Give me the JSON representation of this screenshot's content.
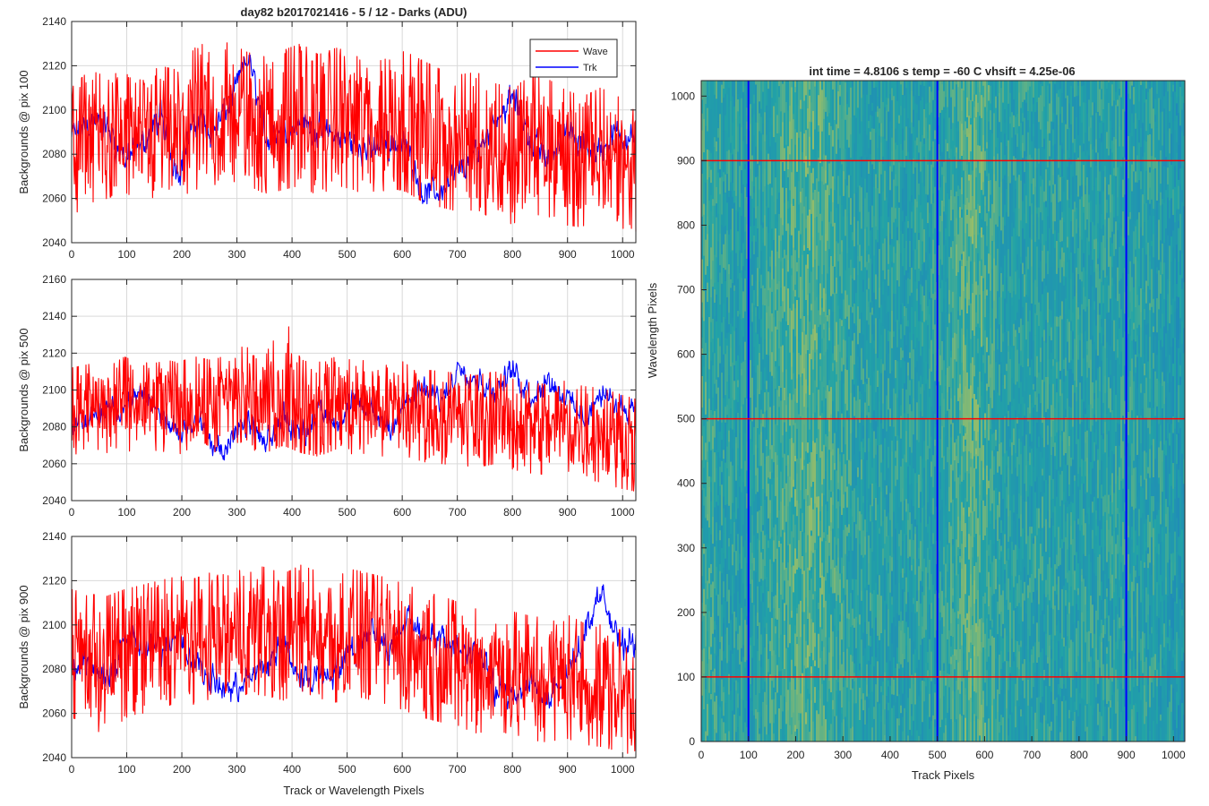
{
  "figure": {
    "left_title": "day82 b2017021416 - 5 / 12 - Darks (ADU)",
    "right_title": "int time = 4.8106 s    temp = -60 C    vhsift = 4.25e-06"
  },
  "colors": {
    "wave": "#ff0000",
    "trk": "#0000ff",
    "grid": "#d9d9d9",
    "axis": "#262626",
    "map_low": "#1e7fc0",
    "map_mid": "#22a3a6",
    "map_high": "#c8c850"
  },
  "chart_data": [
    {
      "type": "line",
      "title": "day82 b2017021416 - 5 / 12 - Darks (ADU)",
      "xlabel": "",
      "ylabel": "Backgrounds @ pix 100",
      "xlim": [
        0,
        1024
      ],
      "ylim": [
        2040,
        2140
      ],
      "xticks": [
        0,
        100,
        200,
        300,
        400,
        500,
        600,
        700,
        800,
        900,
        1000
      ],
      "yticks": [
        2040,
        2060,
        2080,
        2100,
        2120,
        2140
      ],
      "grid": true,
      "legend": "top-right",
      "x": [
        0,
        32,
        64,
        96,
        128,
        160,
        192,
        224,
        256,
        288,
        320,
        352,
        384,
        416,
        448,
        480,
        512,
        544,
        576,
        608,
        640,
        672,
        704,
        736,
        768,
        800,
        832,
        864,
        896,
        928,
        960,
        992,
        1024
      ],
      "series": [
        {
          "name": "Wave",
          "color": "#ff0000",
          "values": [
            2082,
            2092,
            2085,
            2088,
            2084,
            2091,
            2087,
            2095,
            2093,
            2098,
            2096,
            2092,
            2094,
            2098,
            2093,
            2097,
            2095,
            2092,
            2096,
            2094,
            2090,
            2087,
            2085,
            2087,
            2082,
            2080,
            2085,
            2084,
            2079,
            2077,
            2081,
            2078,
            2074
          ],
          "min": [
            2052,
            2058,
            2060,
            2063,
            2058,
            2062,
            2060,
            2064,
            2066,
            2068,
            2066,
            2062,
            2064,
            2066,
            2061,
            2066,
            2064,
            2060,
            2065,
            2063,
            2058,
            2056,
            2054,
            2055,
            2050,
            2048,
            2053,
            2052,
            2048,
            2047,
            2050,
            2047,
            2045
          ],
          "max": [
            2110,
            2118,
            2115,
            2118,
            2113,
            2120,
            2118,
            2128,
            2132,
            2130,
            2126,
            2124,
            2127,
            2130,
            2125,
            2128,
            2126,
            2124,
            2128,
            2126,
            2122,
            2118,
            2116,
            2117,
            2112,
            2110,
            2115,
            2114,
            2109,
            2106,
            2110,
            2106,
            2100
          ]
        },
        {
          "name": "Trk",
          "color": "#0000ff",
          "values": [
            2088,
            2095,
            2092,
            2078,
            2085,
            2097,
            2072,
            2096,
            2090,
            2104,
            2124,
            2088,
            2092,
            2094,
            2090,
            2088,
            2085,
            2082,
            2086,
            2083,
            2062,
            2064,
            2073,
            2082,
            2096,
            2106,
            2086,
            2078,
            2090,
            2082,
            2082,
            2090,
            2087
          ],
          "min": [
            2076,
            2082,
            2080,
            2064,
            2072,
            2084,
            2058,
            2082,
            2078,
            2092,
            2110,
            2074,
            2080,
            2082,
            2076,
            2076,
            2072,
            2068,
            2073,
            2070,
            2050,
            2052,
            2060,
            2069,
            2083,
            2093,
            2073,
            2065,
            2077,
            2069,
            2069,
            2077,
            2074
          ],
          "max": [
            2102,
            2108,
            2106,
            2092,
            2098,
            2110,
            2086,
            2110,
            2103,
            2117,
            2132,
            2102,
            2105,
            2107,
            2103,
            2101,
            2098,
            2096,
            2099,
            2096,
            2076,
            2078,
            2086,
            2095,
            2110,
            2119,
            2100,
            2092,
            2103,
            2096,
            2096,
            2103,
            2100
          ]
        }
      ]
    },
    {
      "type": "line",
      "xlabel": "",
      "ylabel": "Backgrounds @ pix 500",
      "xlim": [
        0,
        1024
      ],
      "ylim": [
        2040,
        2160
      ],
      "xticks": [
        0,
        100,
        200,
        300,
        400,
        500,
        600,
        700,
        800,
        900,
        1000
      ],
      "yticks": [
        2040,
        2060,
        2080,
        2100,
        2120,
        2140,
        2160
      ],
      "grid": true,
      "x": [
        0,
        32,
        64,
        96,
        128,
        160,
        192,
        224,
        256,
        288,
        320,
        352,
        384,
        416,
        448,
        480,
        512,
        544,
        576,
        608,
        640,
        672,
        704,
        736,
        768,
        800,
        832,
        864,
        896,
        928,
        960,
        992,
        1024
      ],
      "series": [
        {
          "name": "Wave",
          "color": "#ff0000",
          "values": [
            2090,
            2092,
            2088,
            2094,
            2090,
            2093,
            2091,
            2094,
            2092,
            2096,
            2094,
            2092,
            2096,
            2093,
            2090,
            2094,
            2091,
            2092,
            2089,
            2090,
            2087,
            2086,
            2085,
            2084,
            2086,
            2083,
            2081,
            2080,
            2082,
            2079,
            2078,
            2075,
            2072
          ],
          "min": [
            2065,
            2066,
            2062,
            2068,
            2064,
            2066,
            2065,
            2068,
            2066,
            2070,
            2068,
            2066,
            2070,
            2066,
            2064,
            2068,
            2065,
            2066,
            2063,
            2064,
            2061,
            2060,
            2059,
            2058,
            2060,
            2057,
            2055,
            2054,
            2056,
            2052,
            2050,
            2047,
            2045
          ],
          "max": [
            2112,
            2114,
            2112,
            2118,
            2114,
            2117,
            2115,
            2118,
            2116,
            2120,
            2125,
            2118,
            2145,
            2118,
            2115,
            2118,
            2116,
            2116,
            2113,
            2116,
            2111,
            2110,
            2109,
            2108,
            2110,
            2106,
            2104,
            2103,
            2105,
            2102,
            2101,
            2098,
            2095
          ]
        },
        {
          "name": "Trk",
          "color": "#0000ff",
          "values": [
            2080,
            2086,
            2088,
            2092,
            2098,
            2088,
            2078,
            2086,
            2068,
            2072,
            2082,
            2068,
            2086,
            2076,
            2090,
            2082,
            2094,
            2088,
            2081,
            2094,
            2100,
            2094,
            2114,
            2106,
            2099,
            2111,
            2097,
            2106,
            2096,
            2084,
            2098,
            2090,
            2092
          ],
          "min": [
            2067,
            2073,
            2075,
            2079,
            2085,
            2075,
            2065,
            2073,
            2055,
            2058,
            2068,
            2052,
            2073,
            2062,
            2077,
            2069,
            2081,
            2075,
            2068,
            2081,
            2087,
            2081,
            2100,
            2093,
            2086,
            2098,
            2084,
            2093,
            2083,
            2071,
            2085,
            2077,
            2079
          ],
          "max": [
            2093,
            2099,
            2101,
            2105,
            2110,
            2101,
            2091,
            2099,
            2081,
            2085,
            2095,
            2081,
            2099,
            2089,
            2103,
            2095,
            2107,
            2101,
            2094,
            2107,
            2113,
            2107,
            2125,
            2119,
            2112,
            2124,
            2110,
            2119,
            2109,
            2097,
            2111,
            2103,
            2105
          ]
        }
      ]
    },
    {
      "type": "line",
      "xlabel": "Track or Wavelength Pixels",
      "ylabel": "Backgrounds @ pix 900",
      "xlim": [
        0,
        1024
      ],
      "ylim": [
        2040,
        2140
      ],
      "xticks": [
        0,
        100,
        200,
        300,
        400,
        500,
        600,
        700,
        800,
        900,
        1000
      ],
      "yticks": [
        2040,
        2060,
        2080,
        2100,
        2120,
        2140
      ],
      "grid": true,
      "x": [
        0,
        32,
        64,
        96,
        128,
        160,
        192,
        224,
        256,
        288,
        320,
        352,
        384,
        416,
        448,
        480,
        512,
        544,
        576,
        608,
        640,
        672,
        704,
        736,
        768,
        800,
        832,
        864,
        896,
        928,
        960,
        992,
        1024
      ],
      "series": [
        {
          "name": "Wave",
          "color": "#ff0000",
          "values": [
            2088,
            2086,
            2085,
            2088,
            2090,
            2092,
            2094,
            2093,
            2096,
            2094,
            2098,
            2097,
            2095,
            2099,
            2096,
            2094,
            2097,
            2095,
            2093,
            2090,
            2087,
            2085,
            2082,
            2079,
            2081,
            2078,
            2076,
            2075,
            2077,
            2073,
            2072,
            2070,
            2068
          ],
          "min": [
            2058,
            2056,
            2048,
            2058,
            2060,
            2062,
            2065,
            2064,
            2067,
            2065,
            2069,
            2068,
            2066,
            2070,
            2067,
            2065,
            2068,
            2066,
            2064,
            2061,
            2058,
            2056,
            2054,
            2051,
            2053,
            2050,
            2048,
            2047,
            2049,
            2046,
            2045,
            2043,
            2041
          ],
          "max": [
            2116,
            2114,
            2113,
            2116,
            2118,
            2120,
            2122,
            2121,
            2124,
            2122,
            2127,
            2126,
            2123,
            2127,
            2124,
            2122,
            2125,
            2123,
            2121,
            2118,
            2115,
            2113,
            2110,
            2107,
            2109,
            2106,
            2104,
            2103,
            2105,
            2101,
            2100,
            2098,
            2096
          ]
        },
        {
          "name": "Trk",
          "color": "#0000ff",
          "values": [
            2078,
            2084,
            2072,
            2096,
            2088,
            2090,
            2098,
            2082,
            2074,
            2070,
            2076,
            2082,
            2092,
            2074,
            2078,
            2080,
            2090,
            2100,
            2088,
            2104,
            2096,
            2092,
            2090,
            2088,
            2070,
            2068,
            2076,
            2064,
            2076,
            2096,
            2116,
            2090,
            2094
          ],
          "min": [
            2065,
            2071,
            2059,
            2083,
            2075,
            2077,
            2085,
            2069,
            2061,
            2057,
            2063,
            2069,
            2079,
            2061,
            2065,
            2067,
            2077,
            2087,
            2075,
            2091,
            2083,
            2079,
            2077,
            2075,
            2057,
            2055,
            2063,
            2046,
            2063,
            2083,
            2103,
            2077,
            2081
          ],
          "max": [
            2091,
            2097,
            2085,
            2109,
            2101,
            2103,
            2111,
            2095,
            2087,
            2083,
            2089,
            2095,
            2105,
            2087,
            2091,
            2093,
            2103,
            2113,
            2101,
            2117,
            2109,
            2105,
            2103,
            2101,
            2083,
            2081,
            2089,
            2077,
            2089,
            2109,
            2121,
            2103,
            2107
          ]
        }
      ]
    },
    {
      "type": "heatmap",
      "title": "int time = 4.8106 s    temp = -60 C    vhsift = 4.25e-06",
      "xlabel": "Track Pixels",
      "ylabel": "Wavelength Pixels",
      "xlim": [
        0,
        1024
      ],
      "ylim": [
        0,
        1024
      ],
      "xticks": [
        0,
        100,
        200,
        300,
        400,
        500,
        600,
        700,
        800,
        900,
        1000
      ],
      "yticks": [
        0,
        100,
        200,
        300,
        400,
        500,
        600,
        700,
        800,
        900,
        1000
      ],
      "colormap": "parula",
      "bright_bands_x": [
        [
          150,
          300
        ],
        [
          530,
          620
        ]
      ],
      "marker_lines": [
        {
          "orientation": "vertical",
          "value": 100,
          "color": "#0000ff"
        },
        {
          "orientation": "vertical",
          "value": 500,
          "color": "#0000ff"
        },
        {
          "orientation": "vertical",
          "value": 900,
          "color": "#0000ff"
        },
        {
          "orientation": "horizontal",
          "value": 100,
          "color": "#ff0000"
        },
        {
          "orientation": "horizontal",
          "value": 500,
          "color": "#ff0000"
        },
        {
          "orientation": "horizontal",
          "value": 900,
          "color": "#ff0000"
        }
      ]
    }
  ]
}
